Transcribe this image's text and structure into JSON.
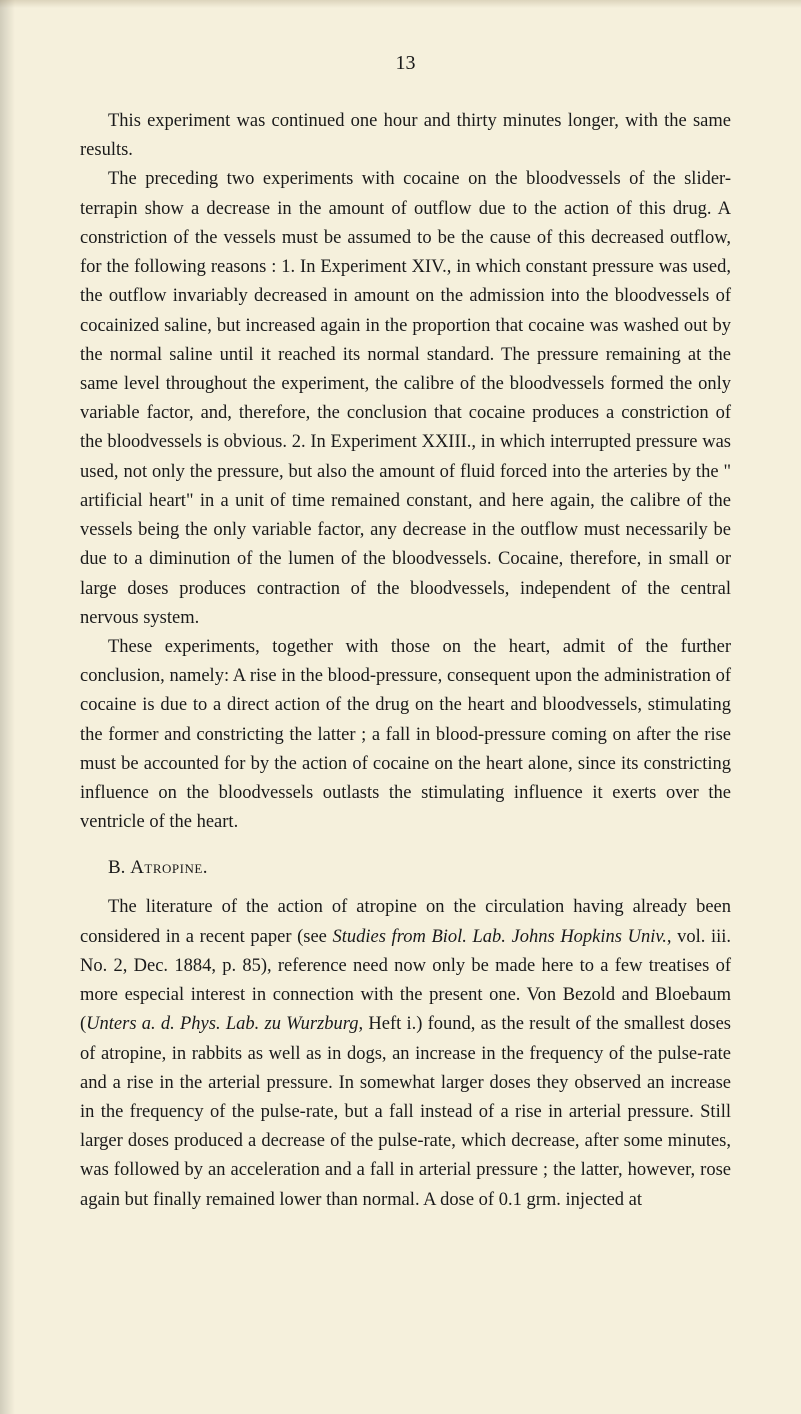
{
  "page": {
    "number": "13",
    "background_color": "#f5f0dc",
    "text_color": "#1a1a1a",
    "font_size_body": 18.5,
    "font_size_heading": 19,
    "line_height": 1.58,
    "text_indent": 28
  },
  "paragraphs": {
    "p1": "This experiment was continued one hour and thirty minutes longer, with the same results.",
    "p2": "The preceding two experiments with cocaine on the bloodvessels of the slider-terrapin show a decrease in the amount of outflow due to the action of this drug. A constriction of the vessels must be assumed to be the cause of this decreased outflow, for the following reasons : 1. In Experiment XIV., in which constant pressure was used, the outflow invariably decreased in amount on the admission into the bloodvessels of cocainized saline, but increased again in the proportion that cocaine was washed out by the normal saline until it reached its normal standard. The pressure remaining at the same level throughout the experiment, the calibre of the bloodvessels formed the only variable factor, and, therefore, the conclusion that cocaine produces a constriction of the bloodvessels is obvious. 2. In Experiment XXIII., in which interrupted pressure was used, not only the pressure, but also the amount of fluid forced into the arteries by the \" artificial heart\" in a unit of time remained constant, and here again, the calibre of the vessels being the only variable factor, any decrease in the outflow must necessarily be due to a diminution of the lumen of the bloodvessels. Cocaine, therefore, in small or large doses produces contraction of the bloodvessels, independent of the central nervous system.",
    "p3": "These experiments, together with those on the heart, admit of the further conclusion, namely: A rise in the blood-pressure, consequent upon the administration of cocaine is due to a direct action of the drug on the heart and bloodvessels, stimulating the former and constricting the latter ; a fall in blood-pressure coming on after the rise must be accounted for by the action of cocaine on the heart alone, since its constricting influence on the bloodvessels outlasts the stimulating influence it exerts over the ventricle of the heart.",
    "p4_part1": "The literature of the action of atropine on the circulation having already been considered in a recent paper (see ",
    "p4_italic1": "Studies from Biol. Lab. Johns Hopkins Univ.",
    "p4_part2": ", vol. iii. No. 2, Dec. 1884, p. 85), reference need now only be made here to a few treatises of more especial interest in connection with the present one. Von Bezold and Bloebaum (",
    "p4_italic2": "Unters a. d. Phys. Lab. zu Wurzburg",
    "p4_part3": ", Heft i.) found, as the result of the smallest doses of atropine, in rabbits as well as in dogs, an increase in the frequency of the pulse-rate and a rise in the arterial pressure. In somewhat larger doses they observed an increase in the frequency of the pulse-rate, but a fall instead of a rise in arterial pressure. Still larger doses produced a decrease of the pulse-rate, which decrease, after some minutes, was followed by an acceleration and a fall in arterial pressure ; the latter, however, rose again but finally remained lower than normal. A dose of 0.1 grm. injected at"
  },
  "section": {
    "letter": "B.",
    "title": "Atropine."
  }
}
